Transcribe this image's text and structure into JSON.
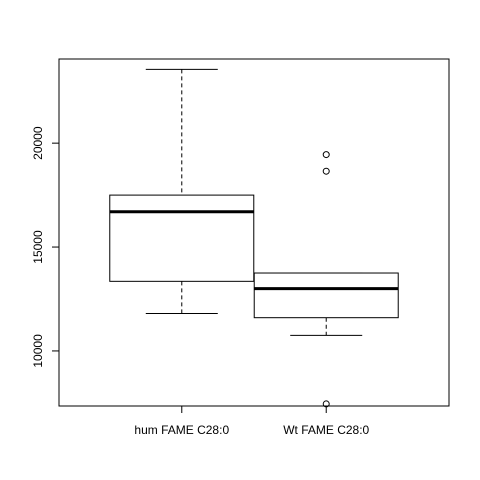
{
  "chart_data": {
    "type": "boxplot",
    "categories": [
      "hum FAME C28:0",
      "Wt FAME C28:0"
    ],
    "yticks": [
      10000,
      15000,
      20000
    ],
    "ylim": [
      7350,
      24050
    ],
    "grid": false,
    "title": "",
    "xlabel": "",
    "ylabel": "",
    "boxes": [
      {
        "name": "hum FAME C28:0",
        "whisker_low": 11800,
        "q1": 13350,
        "median": 16700,
        "q3": 17500,
        "whisker_high": 23550,
        "outliers": []
      },
      {
        "name": "Wt FAME C28:0",
        "whisker_low": 10750,
        "q1": 11600,
        "median": 13000,
        "q3": 13750,
        "whisker_high": 13750,
        "outliers": [
          7450,
          18650,
          19450
        ]
      }
    ]
  }
}
